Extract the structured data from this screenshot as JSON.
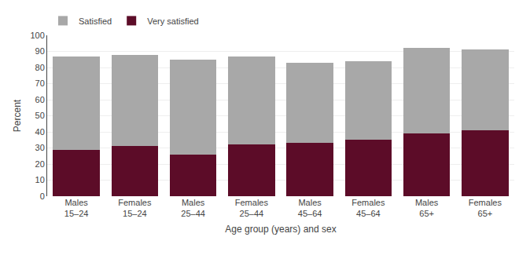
{
  "chart_data": {
    "type": "bar",
    "categories": [
      "Males\n15–24",
      "Females\n15–24",
      "Males\n25–44",
      "Females\n25–44",
      "Males\n45–64",
      "Females\n45–64",
      "Males\n65+",
      "Females\n65+"
    ],
    "series": [
      {
        "name": "Very satisfied",
        "color": "#5c0c28",
        "values": [
          29,
          31,
          26,
          32,
          33,
          35,
          39,
          41
        ]
      },
      {
        "name": "Satisfied",
        "color": "#a8a8a8",
        "values": [
          58,
          57,
          59,
          55,
          50,
          49,
          53,
          50
        ]
      }
    ],
    "stacked": true,
    "xlabel": "Age group (years) and sex",
    "ylabel": "Percent",
    "ylim": [
      0,
      100
    ],
    "yticks": [
      0,
      10,
      20,
      30,
      40,
      50,
      60,
      70,
      80,
      90,
      100
    ],
    "grid": true,
    "legend": "upper left"
  }
}
